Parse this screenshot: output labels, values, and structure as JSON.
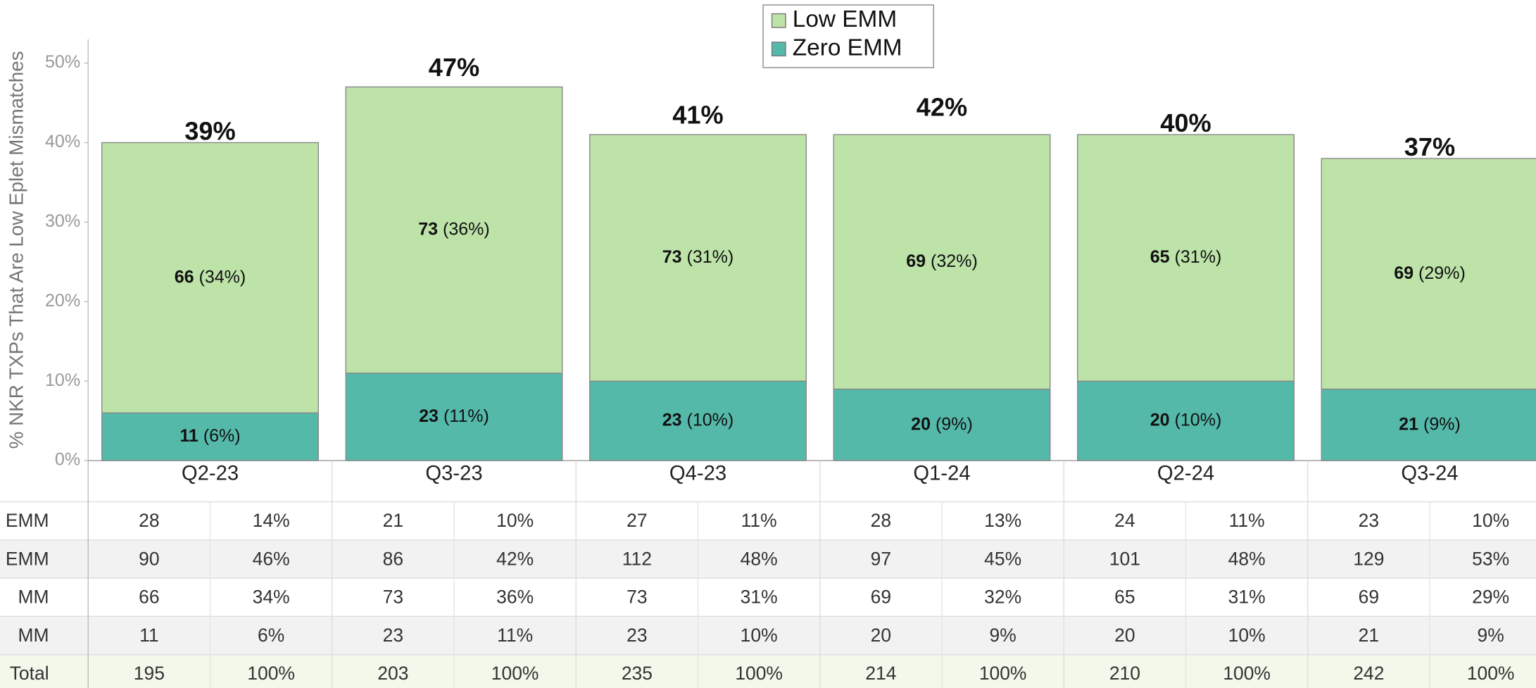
{
  "chart_data": {
    "type": "stacked-bar",
    "y_label": "% NKR TXPs That Are Low Eplet Mismatches",
    "categories": [
      "Q2-23",
      "Q3-23",
      "Q4-23",
      "Q1-24",
      "Q2-24",
      "Q3-24"
    ],
    "series": [
      {
        "name": "Low EMM",
        "color": "#bde3a9",
        "values": [
          34,
          36,
          31,
          32,
          31,
          29
        ],
        "counts": [
          66,
          73,
          73,
          69,
          65,
          69
        ],
        "value_labels": [
          "(34%)",
          "(36%)",
          "(31%)",
          "(32%)",
          "(31%)",
          "(29%)"
        ]
      },
      {
        "name": "Zero EMM",
        "color": "#55b9aa",
        "values": [
          6,
          11,
          10,
          9,
          10,
          9
        ],
        "counts": [
          11,
          23,
          23,
          20,
          20,
          21
        ],
        "value_labels": [
          "(6%)",
          "(11%)",
          "(10%)",
          "(9%)",
          "(10%)",
          "(9%)"
        ]
      }
    ],
    "totals": [
      39,
      47,
      41,
      42,
      40,
      37
    ],
    "total_labels": [
      "39%",
      "47%",
      "41%",
      "42%",
      "40%",
      "37%"
    ],
    "ylim": [
      0,
      53
    ],
    "yticks": [
      {
        "value": 0,
        "label": "0%"
      },
      {
        "value": 10,
        "label": "10%"
      },
      {
        "value": 20,
        "label": "20%"
      },
      {
        "value": 30,
        "label": "30%"
      },
      {
        "value": 40,
        "label": "40%"
      },
      {
        "value": 50,
        "label": "50%"
      }
    ],
    "legend": "top"
  },
  "table": {
    "rows": [
      {
        "label": "EMM",
        "cells": [
          "28",
          "14%",
          "21",
          "10%",
          "27",
          "11%",
          "28",
          "13%",
          "24",
          "11%",
          "23",
          "10%"
        ]
      },
      {
        "label": "n EMM",
        "cells": [
          "90",
          "46%",
          "86",
          "42%",
          "112",
          "48%",
          "97",
          "45%",
          "101",
          "48%",
          "129",
          "53%"
        ]
      },
      {
        "label": "MM",
        "cells": [
          "66",
          "34%",
          "73",
          "36%",
          "73",
          "31%",
          "69",
          "32%",
          "65",
          "31%",
          "69",
          "29%"
        ]
      },
      {
        "label": "MM",
        "cells": [
          "11",
          "6%",
          "23",
          "11%",
          "23",
          "10%",
          "20",
          "9%",
          "20",
          "10%",
          "21",
          "9%"
        ]
      },
      {
        "label": "Total",
        "cells": [
          "195",
          "100%",
          "203",
          "100%",
          "235",
          "100%",
          "214",
          "100%",
          "210",
          "100%",
          "242",
          "100%"
        ]
      }
    ]
  }
}
